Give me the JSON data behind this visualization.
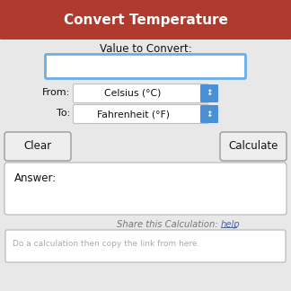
{
  "title": "Convert Temperature",
  "title_bg": "#b03a2e",
  "title_color": "#ffffff",
  "title_fontsize": 11,
  "bg_color": "#e0e0e0",
  "label_value": "Value to Convert:",
  "label_from": "From:",
  "label_to": "To:",
  "from_value": "Celsius (°C)",
  "to_value": "Fahrenheit (°F)",
  "btn_clear": "Clear",
  "btn_calculate": "Calculate",
  "answer_label": "Answer:",
  "share_text": "Share this Calculation: ",
  "share_link": "help",
  "placeholder_text": "Do a calculation then copy the link from here.",
  "input_border": "#6aaee8",
  "dropdown_blue": "#4a90d9",
  "btn_border": "#aaaaaa",
  "answer_border": "#bbbbbb",
  "share_text_color": "#777777",
  "link_color": "#3366cc",
  "outer_border": "#c0c0c0",
  "inner_bg": "#e8e8e8"
}
